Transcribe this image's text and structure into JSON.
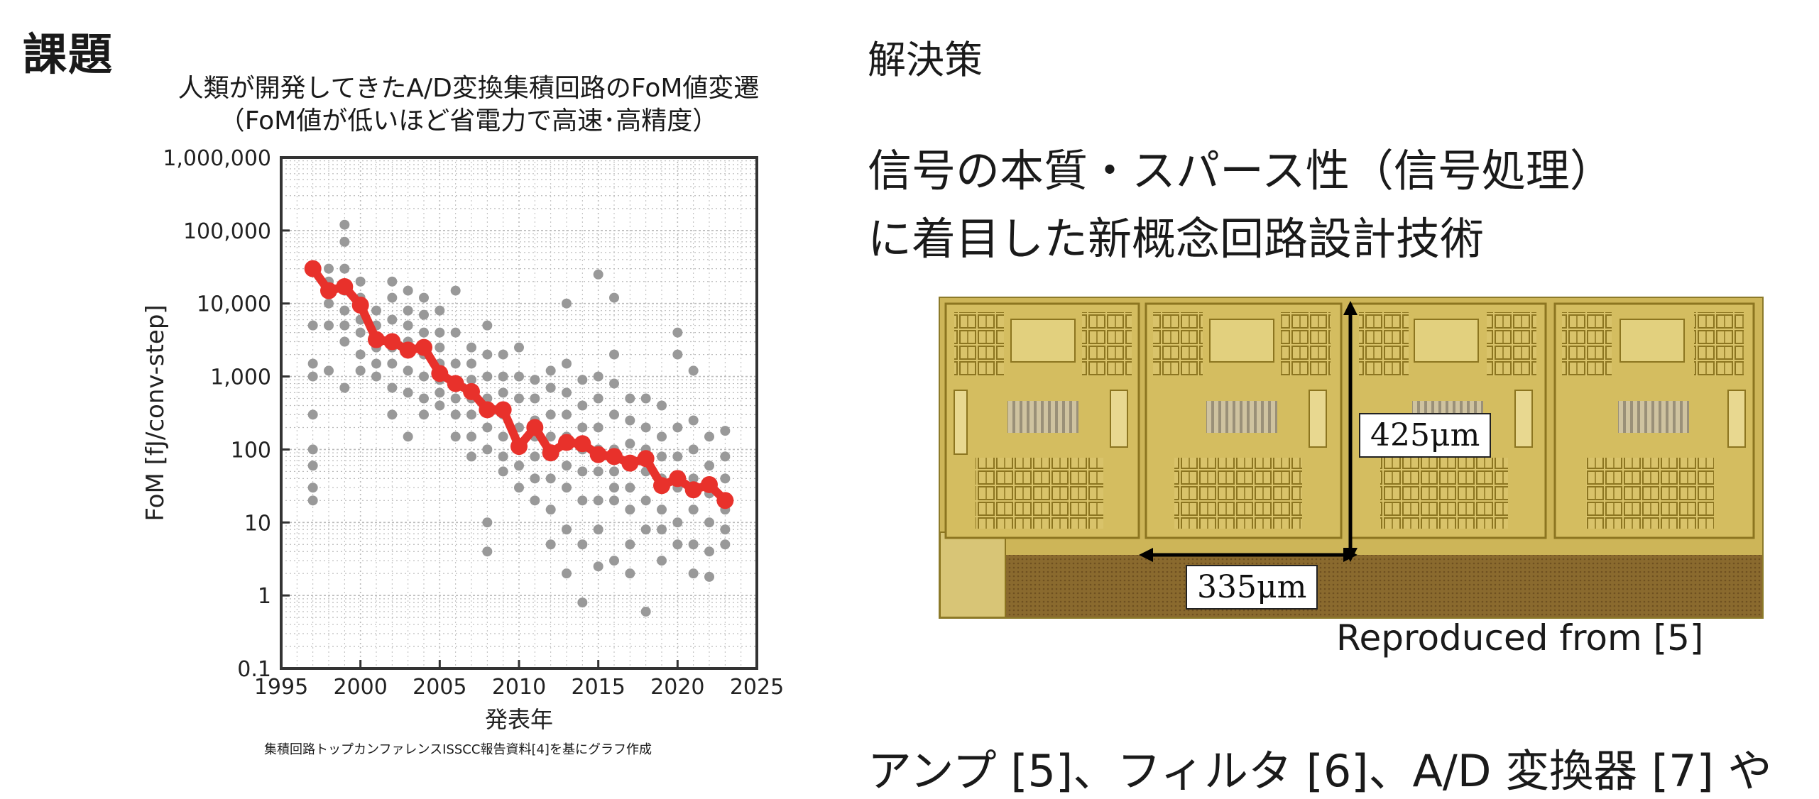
{
  "left": {
    "heading": "課題",
    "caption": "集積回路トップカンファレンスISSCC報告資料[4]を基にグラフ作成"
  },
  "right": {
    "heading": "解決策",
    "line1": "信号の本質・スパース性（信号処理）",
    "line2": "に着目した新概念回路設計技術",
    "image_caption": "Reproduced from [5]",
    "dim_height": "425μm",
    "dim_width": "335μm",
    "bottom_text": "アンプ [5]、フィルタ [6]、A/D 変換器 [7] や"
  },
  "colors": {
    "scatter": "#999999",
    "trend": "#e8312b",
    "axis": "#333333",
    "grid": "#bbbbbb"
  },
  "chart_data": {
    "type": "scatter",
    "title": "人類が開発してきたA/D変換集積回路のFoM値変遷",
    "subtitle": "（FoM値が低いほど省電力で高速･高精度）",
    "xlabel": "発表年",
    "ylabel": "FoM [fJ/conv-step]",
    "xlim": [
      1995,
      2025
    ],
    "ylim": [
      0.1,
      1000000
    ],
    "yscale": "log",
    "grid": true,
    "x_ticks": [
      1995,
      2000,
      2005,
      2010,
      2015,
      2020,
      2025
    ],
    "y_ticks": [
      {
        "value": 0.1,
        "label": "0.1"
      },
      {
        "value": 1,
        "label": "1"
      },
      {
        "value": 10,
        "label": "10"
      },
      {
        "value": 100,
        "label": "100"
      },
      {
        "value": 1000,
        "label": "1,000"
      },
      {
        "value": 10000,
        "label": "10,000"
      },
      {
        "value": 100000,
        "label": "100,000"
      },
      {
        "value": 1000000,
        "label": "1,000,000"
      }
    ],
    "series": [
      {
        "kind": "points",
        "points": [
          [
            1997,
            300
          ],
          [
            1997,
            100
          ],
          [
            1997,
            60
          ],
          [
            1997,
            30
          ],
          [
            1997,
            20
          ],
          [
            1997,
            5000
          ],
          [
            1997,
            1500
          ],
          [
            1997,
            1000
          ],
          [
            1998,
            30000
          ],
          [
            1998,
            20000
          ],
          [
            1998,
            10000
          ],
          [
            1998,
            5000
          ],
          [
            1998,
            1200
          ],
          [
            1999,
            120000
          ],
          [
            1999,
            70000
          ],
          [
            1999,
            30000
          ],
          [
            1999,
            15000
          ],
          [
            1999,
            8000
          ],
          [
            1999,
            5000
          ],
          [
            1999,
            3000
          ],
          [
            1999,
            700
          ],
          [
            2000,
            20000
          ],
          [
            2000,
            12000
          ],
          [
            2000,
            6000
          ],
          [
            2000,
            4000
          ],
          [
            2000,
            2000
          ],
          [
            2000,
            1200
          ],
          [
            2001,
            8000
          ],
          [
            2001,
            5000
          ],
          [
            2001,
            2500
          ],
          [
            2001,
            1500
          ],
          [
            2001,
            1000
          ],
          [
            2002,
            20000
          ],
          [
            2002,
            12000
          ],
          [
            2002,
            6000
          ],
          [
            2002,
            2500
          ],
          [
            2002,
            1500
          ],
          [
            2002,
            700
          ],
          [
            2002,
            300
          ],
          [
            2003,
            15000
          ],
          [
            2003,
            8000
          ],
          [
            2003,
            5000
          ],
          [
            2003,
            3000
          ],
          [
            2003,
            1200
          ],
          [
            2003,
            600
          ],
          [
            2003,
            150
          ],
          [
            2004,
            12000
          ],
          [
            2004,
            7000
          ],
          [
            2004,
            4000
          ],
          [
            2004,
            2000
          ],
          [
            2004,
            1000
          ],
          [
            2004,
            500
          ],
          [
            2004,
            300
          ],
          [
            2005,
            8000
          ],
          [
            2005,
            4000
          ],
          [
            2005,
            2500
          ],
          [
            2005,
            1500
          ],
          [
            2005,
            900
          ],
          [
            2005,
            600
          ],
          [
            2005,
            400
          ],
          [
            2006,
            15000
          ],
          [
            2006,
            4000
          ],
          [
            2006,
            1500
          ],
          [
            2006,
            800
          ],
          [
            2006,
            500
          ],
          [
            2006,
            300
          ],
          [
            2006,
            150
          ],
          [
            2007,
            2500
          ],
          [
            2007,
            1500
          ],
          [
            2007,
            900
          ],
          [
            2007,
            500
          ],
          [
            2007,
            300
          ],
          [
            2007,
            150
          ],
          [
            2007,
            80
          ],
          [
            2008,
            5000
          ],
          [
            2008,
            2000
          ],
          [
            2008,
            1000
          ],
          [
            2008,
            500
          ],
          [
            2008,
            200
          ],
          [
            2008,
            100
          ],
          [
            2008,
            10
          ],
          [
            2008,
            4
          ],
          [
            2009,
            2000
          ],
          [
            2009,
            1000
          ],
          [
            2009,
            600
          ],
          [
            2009,
            300
          ],
          [
            2009,
            150
          ],
          [
            2009,
            80
          ],
          [
            2009,
            50
          ],
          [
            2010,
            2500
          ],
          [
            2010,
            1000
          ],
          [
            2010,
            500
          ],
          [
            2010,
            200
          ],
          [
            2010,
            100
          ],
          [
            2010,
            60
          ],
          [
            2010,
            30
          ],
          [
            2011,
            900
          ],
          [
            2011,
            500
          ],
          [
            2011,
            250
          ],
          [
            2011,
            150
          ],
          [
            2011,
            80
          ],
          [
            2011,
            40
          ],
          [
            2011,
            20
          ],
          [
            2012,
            1200
          ],
          [
            2012,
            700
          ],
          [
            2012,
            300
          ],
          [
            2012,
            150
          ],
          [
            2012,
            80
          ],
          [
            2012,
            40
          ],
          [
            2012,
            15
          ],
          [
            2012,
            5
          ],
          [
            2013,
            10000
          ],
          [
            2013,
            1500
          ],
          [
            2013,
            600
          ],
          [
            2013,
            300
          ],
          [
            2013,
            150
          ],
          [
            2013,
            60
          ],
          [
            2013,
            30
          ],
          [
            2013,
            8
          ],
          [
            2013,
            2
          ],
          [
            2014,
            900
          ],
          [
            2014,
            400
          ],
          [
            2014,
            200
          ],
          [
            2014,
            100
          ],
          [
            2014,
            50
          ],
          [
            2014,
            20
          ],
          [
            2014,
            5
          ],
          [
            2014,
            0.8
          ],
          [
            2015,
            25000
          ],
          [
            2015,
            1000
          ],
          [
            2015,
            500
          ],
          [
            2015,
            200
          ],
          [
            2015,
            100
          ],
          [
            2015,
            50
          ],
          [
            2015,
            20
          ],
          [
            2015,
            8
          ],
          [
            2015,
            2.5
          ],
          [
            2016,
            12000
          ],
          [
            2016,
            2000
          ],
          [
            2016,
            800
          ],
          [
            2016,
            300
          ],
          [
            2016,
            100
          ],
          [
            2016,
            50
          ],
          [
            2016,
            30
          ],
          [
            2016,
            20
          ],
          [
            2016,
            3
          ],
          [
            2017,
            500
          ],
          [
            2017,
            250
          ],
          [
            2017,
            120
          ],
          [
            2017,
            60
          ],
          [
            2017,
            30
          ],
          [
            2017,
            15
          ],
          [
            2017,
            5
          ],
          [
            2017,
            2
          ],
          [
            2018,
            500
          ],
          [
            2018,
            200
          ],
          [
            2018,
            100
          ],
          [
            2018,
            50
          ],
          [
            2018,
            20
          ],
          [
            2018,
            8
          ],
          [
            2018,
            0.6
          ],
          [
            2019,
            400
          ],
          [
            2019,
            150
          ],
          [
            2019,
            80
          ],
          [
            2019,
            40
          ],
          [
            2019,
            15
          ],
          [
            2019,
            8
          ],
          [
            2019,
            3
          ],
          [
            2020,
            4000
          ],
          [
            2020,
            2000
          ],
          [
            2020,
            200
          ],
          [
            2020,
            80
          ],
          [
            2020,
            30
          ],
          [
            2020,
            10
          ],
          [
            2020,
            5
          ],
          [
            2021,
            1200
          ],
          [
            2021,
            250
          ],
          [
            2021,
            100
          ],
          [
            2021,
            40
          ],
          [
            2021,
            15
          ],
          [
            2021,
            5
          ],
          [
            2021,
            2
          ],
          [
            2022,
            150
          ],
          [
            2022,
            60
          ],
          [
            2022,
            25
          ],
          [
            2022,
            10
          ],
          [
            2022,
            4
          ],
          [
            2022,
            1.8
          ],
          [
            2023,
            180
          ],
          [
            2023,
            80
          ],
          [
            2023,
            40
          ],
          [
            2023,
            15
          ],
          [
            2023,
            8
          ],
          [
            2023,
            5
          ]
        ]
      },
      {
        "kind": "trend",
        "points": [
          [
            1997,
            30000
          ],
          [
            1998,
            15000
          ],
          [
            1999,
            17000
          ],
          [
            2000,
            9500
          ],
          [
            2001,
            3200
          ],
          [
            2002,
            3000
          ],
          [
            2003,
            2300
          ],
          [
            2004,
            2500
          ],
          [
            2005,
            1100
          ],
          [
            2006,
            800
          ],
          [
            2007,
            620
          ],
          [
            2008,
            350
          ],
          [
            2009,
            350
          ],
          [
            2010,
            110
          ],
          [
            2011,
            200
          ],
          [
            2012,
            90
          ],
          [
            2013,
            125
          ],
          [
            2014,
            120
          ],
          [
            2015,
            85
          ],
          [
            2016,
            80
          ],
          [
            2017,
            65
          ],
          [
            2018,
            75
          ],
          [
            2019,
            32
          ],
          [
            2020,
            40
          ],
          [
            2021,
            28
          ],
          [
            2022,
            33
          ],
          [
            2023,
            20
          ]
        ]
      }
    ]
  }
}
